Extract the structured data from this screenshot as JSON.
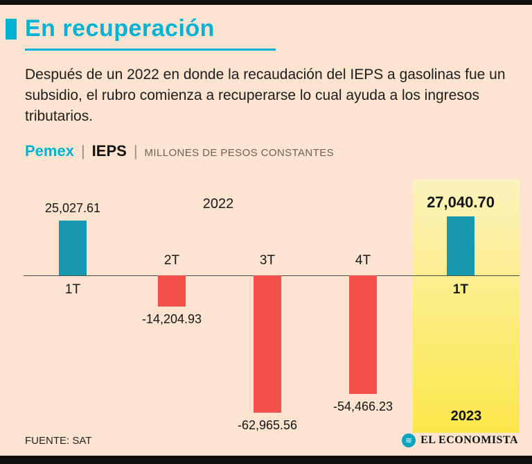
{
  "page": {
    "title": "En recuperación",
    "description": "Después de un 2022 en donde la recaudación del IEPS a gasolinas fue un subsidio, el rubro comienza a recuperarse lo cual ayuda a los ingresos tributarios.",
    "legend": {
      "brand": "Pemex",
      "separator": "|",
      "tax": "IEPS",
      "units": "MILLONES DE PESOS CONSTANTES"
    },
    "footer": {
      "source": "FUENTE: SAT",
      "publisher": "EL ECONOMISTA"
    }
  },
  "colors": {
    "accent_teal": "#00b2d4",
    "bar_teal": "#1898ae",
    "bar_red": "#f4514d",
    "background": "#fce4d1",
    "highlight_yellow": "#fce74a"
  },
  "chart_data": {
    "type": "bar",
    "title": "Pemex | IEPS | Millones de pesos constantes",
    "categories": [
      "1T",
      "2T",
      "3T",
      "4T",
      "1T"
    ],
    "values": [
      25027.61,
      -14204.93,
      -62965.56,
      -54466.23,
      27040.7
    ],
    "value_labels": [
      "25,027.61",
      "-14,204.93",
      "-62,965.56",
      "-54,466.23",
      "27,040.70"
    ],
    "group_labels": {
      "left": "2022",
      "right": "2023"
    },
    "years": [
      "2022",
      "2022",
      "2022",
      "2022",
      "2023"
    ],
    "highlight_index": 4,
    "ylim": [
      -70000,
      30000
    ],
    "grid": false,
    "legend_position": "none",
    "positive_color": "#1898ae",
    "negative_color": "#f4514d"
  }
}
